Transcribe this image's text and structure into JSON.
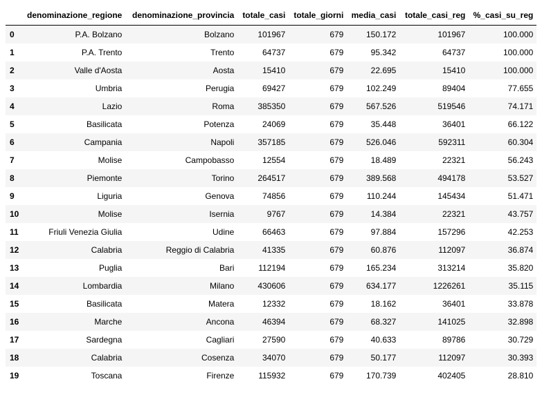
{
  "table": {
    "columns": [
      "",
      "denominazione_regione",
      "denominazione_provincia",
      "totale_casi",
      "totale_giorni",
      "media_casi",
      "totale_casi_reg",
      "%_casi_su_reg"
    ],
    "rows": [
      [
        "0",
        "P.A. Bolzano",
        "Bolzano",
        "101967",
        "679",
        "150.172",
        "101967",
        "100.000"
      ],
      [
        "1",
        "P.A. Trento",
        "Trento",
        "64737",
        "679",
        "95.342",
        "64737",
        "100.000"
      ],
      [
        "2",
        "Valle d'Aosta",
        "Aosta",
        "15410",
        "679",
        "22.695",
        "15410",
        "100.000"
      ],
      [
        "3",
        "Umbria",
        "Perugia",
        "69427",
        "679",
        "102.249",
        "89404",
        "77.655"
      ],
      [
        "4",
        "Lazio",
        "Roma",
        "385350",
        "679",
        "567.526",
        "519546",
        "74.171"
      ],
      [
        "5",
        "Basilicata",
        "Potenza",
        "24069",
        "679",
        "35.448",
        "36401",
        "66.122"
      ],
      [
        "6",
        "Campania",
        "Napoli",
        "357185",
        "679",
        "526.046",
        "592311",
        "60.304"
      ],
      [
        "7",
        "Molise",
        "Campobasso",
        "12554",
        "679",
        "18.489",
        "22321",
        "56.243"
      ],
      [
        "8",
        "Piemonte",
        "Torino",
        "264517",
        "679",
        "389.568",
        "494178",
        "53.527"
      ],
      [
        "9",
        "Liguria",
        "Genova",
        "74856",
        "679",
        "110.244",
        "145434",
        "51.471"
      ],
      [
        "10",
        "Molise",
        "Isernia",
        "9767",
        "679",
        "14.384",
        "22321",
        "43.757"
      ],
      [
        "11",
        "Friuli Venezia Giulia",
        "Udine",
        "66463",
        "679",
        "97.884",
        "157296",
        "42.253"
      ],
      [
        "12",
        "Calabria",
        "Reggio di Calabria",
        "41335",
        "679",
        "60.876",
        "112097",
        "36.874"
      ],
      [
        "13",
        "Puglia",
        "Bari",
        "112194",
        "679",
        "165.234",
        "313214",
        "35.820"
      ],
      [
        "14",
        "Lombardia",
        "Milano",
        "430606",
        "679",
        "634.177",
        "1226261",
        "35.115"
      ],
      [
        "15",
        "Basilicata",
        "Matera",
        "12332",
        "679",
        "18.162",
        "36401",
        "33.878"
      ],
      [
        "16",
        "Marche",
        "Ancona",
        "46394",
        "679",
        "68.327",
        "141025",
        "32.898"
      ],
      [
        "17",
        "Sardegna",
        "Cagliari",
        "27590",
        "679",
        "40.633",
        "89786",
        "30.729"
      ],
      [
        "18",
        "Calabria",
        "Cosenza",
        "34070",
        "679",
        "50.177",
        "112097",
        "30.393"
      ],
      [
        "19",
        "Toscana",
        "Firenze",
        "115932",
        "679",
        "170.739",
        "402405",
        "28.810"
      ]
    ]
  },
  "colors": {
    "stripe": "#f5f5f5",
    "background": "#ffffff",
    "header_rule": "#000000"
  }
}
